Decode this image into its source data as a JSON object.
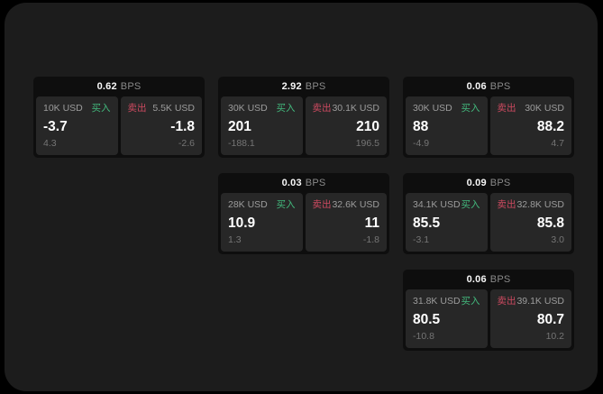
{
  "labels": {
    "bps_unit": "BPS",
    "buy": "买入",
    "sell": "卖出"
  },
  "colors": {
    "window_bg": "#1c1c1c",
    "panel_bg": "#0e0e0e",
    "tile_bg": "#272727",
    "buy_green": "#43b97d",
    "sell_red": "#cd4a60",
    "label_gray": "#9c9c9c",
    "delta_gray": "#757575",
    "unit_gray": "#8a8a8a"
  },
  "cards": [
    {
      "bps": "0.62",
      "col": 1,
      "row": 1,
      "buy": {
        "amount": "10K USD",
        "value": "-3.7",
        "delta": "4.3"
      },
      "sell": {
        "amount": "5.5K USD",
        "value": "-1.8",
        "delta": "-2.6"
      }
    },
    {
      "bps": "2.92",
      "col": 2,
      "row": 1,
      "buy": {
        "amount": "30K USD",
        "value": "201",
        "delta": "-188.1"
      },
      "sell": {
        "amount": "30.1K USD",
        "value": "210",
        "delta": "196.5"
      }
    },
    {
      "bps": "0.06",
      "col": 3,
      "row": 1,
      "buy": {
        "amount": "30K USD",
        "value": "88",
        "delta": "-4.9"
      },
      "sell": {
        "amount": "30K USD",
        "value": "88.2",
        "delta": "4.7"
      }
    },
    {
      "bps": "0.03",
      "col": 2,
      "row": 2,
      "buy": {
        "amount": "28K USD",
        "value": "10.9",
        "delta": "1.3"
      },
      "sell": {
        "amount": "32.6K USD",
        "value": "11",
        "delta": "-1.8"
      }
    },
    {
      "bps": "0.09",
      "col": 3,
      "row": 2,
      "buy": {
        "amount": "34.1K USD",
        "value": "85.5",
        "delta": "-3.1"
      },
      "sell": {
        "amount": "32.8K USD",
        "value": "85.8",
        "delta": "3.0"
      }
    },
    {
      "bps": "0.06",
      "col": 3,
      "row": 3,
      "buy": {
        "amount": "31.8K USD",
        "value": "80.5",
        "delta": "-10.8"
      },
      "sell": {
        "amount": "39.1K USD",
        "value": "80.7",
        "delta": "10.2"
      }
    }
  ]
}
